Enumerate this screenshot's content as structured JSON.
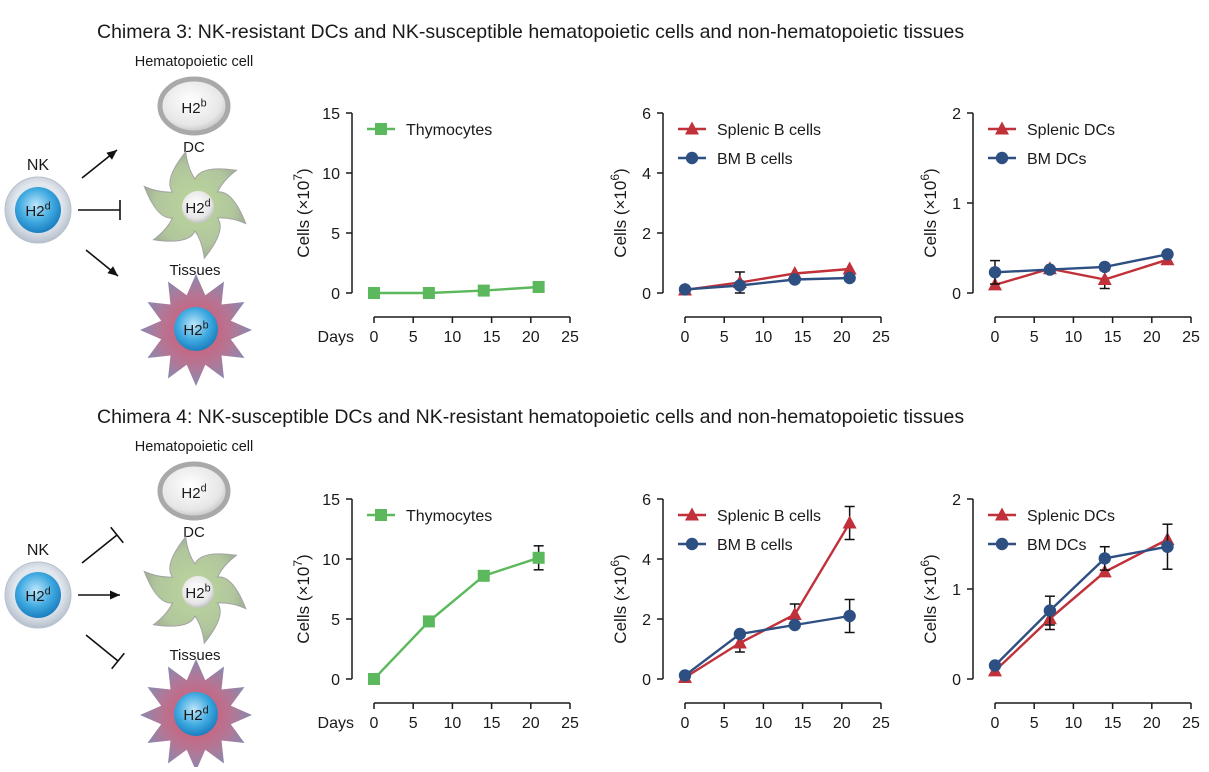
{
  "colors": {
    "green": "#5cb85c",
    "red": "#c0313a",
    "blue": "#2d4f82",
    "cell_gray": "#bcbcbc",
    "cell_blue": "#3fa9e0",
    "axis": "#1a1a1a"
  },
  "icons": [
    "activation-arrow-icon",
    "inhibition-arrow-icon",
    "nk-cell-icon",
    "hematopoietic-cell-icon",
    "dendritic-cell-icon",
    "tissue-cell-icon"
  ],
  "panels": [
    {
      "title": "Chimera 3: NK-resistant DCs and NK-susceptible hematopoietic cells and non-hematopoietic tissues",
      "diagram": {
        "nk_label": "NK",
        "nk_haplotype": "H2",
        "nk_sup": "d",
        "hema_label": "Hematopoietic cell",
        "hema_haplotype": "H2",
        "hema_sup": "b",
        "dc_label": "DC",
        "dc_haplotype": "H2",
        "dc_sup": "d",
        "tissue_label": "Tissues",
        "tissue_haplotype": "H2",
        "tissue_sup": "b",
        "arrows": [
          "activate",
          "inhibit",
          "activate"
        ]
      }
    },
    {
      "title": "Chimera 4: NK-susceptible DCs and NK-resistant hematopoietic cells and non-hematopoietic tissues",
      "diagram": {
        "nk_label": "NK",
        "nk_haplotype": "H2",
        "nk_sup": "d",
        "hema_label": "Hematopoietic cell",
        "hema_haplotype": "H2",
        "hema_sup": "d",
        "dc_label": "DC",
        "dc_haplotype": "H2",
        "dc_sup": "b",
        "tissue_label": "Tissues",
        "tissue_haplotype": "H2",
        "tissue_sup": "d",
        "arrows": [
          "inhibit",
          "activate",
          "inhibit"
        ]
      }
    }
  ],
  "chart_data": [
    {
      "type": "line",
      "panel": "Chimera 3",
      "ylabel": "Cells (×10",
      "ylabel_exp": "7",
      "ylabel_end": ")",
      "xlabel": "Days",
      "xlim": [
        0,
        25
      ],
      "ylim": [
        0,
        15
      ],
      "xticks": [
        0,
        5,
        10,
        15,
        20,
        25
      ],
      "yticks": [
        0,
        5,
        10,
        15
      ],
      "series": [
        {
          "name": "Thymocytes",
          "marker": "square",
          "color": "#5cb85c",
          "x": [
            0,
            7,
            14,
            21
          ],
          "values": [
            0,
            0,
            0.2,
            0.5
          ],
          "err": [
            0,
            0,
            0,
            0
          ]
        }
      ]
    },
    {
      "type": "line",
      "panel": "Chimera 3",
      "ylabel": "Cells (×10",
      "ylabel_exp": "6",
      "ylabel_end": ")",
      "xlabel": "",
      "xlim": [
        0,
        25
      ],
      "ylim": [
        0,
        6
      ],
      "xticks": [
        0,
        5,
        10,
        15,
        20,
        25
      ],
      "yticks": [
        0,
        2,
        4,
        6
      ],
      "series": [
        {
          "name": "Splenic B cells",
          "marker": "triangle",
          "color": "#c0313a",
          "x": [
            0,
            7,
            14,
            21
          ],
          "values": [
            0.1,
            0.35,
            0.65,
            0.8
          ],
          "err": [
            0,
            0.35,
            0,
            0
          ]
        },
        {
          "name": "BM B cells",
          "marker": "circle",
          "color": "#2d4f82",
          "x": [
            0,
            7,
            14,
            21
          ],
          "values": [
            0.12,
            0.25,
            0.45,
            0.5
          ],
          "err": [
            0,
            0,
            0,
            0
          ]
        }
      ]
    },
    {
      "type": "line",
      "panel": "Chimera 3",
      "ylabel": "Cells (×10",
      "ylabel_exp": "6",
      "ylabel_end": ")",
      "xlabel": "",
      "xlim": [
        0,
        25
      ],
      "ylim": [
        0,
        2
      ],
      "xticks": [
        0,
        5,
        10,
        15,
        20,
        25
      ],
      "yticks": [
        0,
        1,
        2
      ],
      "series": [
        {
          "name": "Splenic DCs",
          "marker": "triangle",
          "color": "#c0313a",
          "x": [
            0,
            7,
            14,
            22
          ],
          "values": [
            0.09,
            0.27,
            0.15,
            0.37
          ],
          "err": [
            0,
            0,
            0.1,
            0
          ]
        },
        {
          "name": "BM DCs",
          "marker": "circle",
          "color": "#2d4f82",
          "x": [
            0,
            7,
            14,
            22
          ],
          "values": [
            0.23,
            0.26,
            0.29,
            0.43
          ],
          "err": [
            0.13,
            0,
            0,
            0
          ]
        }
      ]
    },
    {
      "type": "line",
      "panel": "Chimera 4",
      "ylabel": "Cells (×10",
      "ylabel_exp": "7",
      "ylabel_end": ")",
      "xlabel": "Days",
      "xlim": [
        0,
        25
      ],
      "ylim": [
        0,
        15
      ],
      "xticks": [
        0,
        5,
        10,
        15,
        20,
        25
      ],
      "yticks": [
        0,
        5,
        10,
        15
      ],
      "series": [
        {
          "name": "Thymocytes",
          "marker": "square",
          "color": "#5cb85c",
          "x": [
            0,
            7,
            14,
            21
          ],
          "values": [
            0,
            4.8,
            8.6,
            10.1
          ],
          "err": [
            0,
            0,
            0,
            1.0
          ]
        }
      ]
    },
    {
      "type": "line",
      "panel": "Chimera 4",
      "ylabel": "Cells (×10",
      "ylabel_exp": "6",
      "ylabel_end": ")",
      "xlabel": "",
      "xlim": [
        0,
        25
      ],
      "ylim": [
        0,
        6
      ],
      "xticks": [
        0,
        5,
        10,
        15,
        20,
        25
      ],
      "yticks": [
        0,
        2,
        4,
        6
      ],
      "series": [
        {
          "name": "Splenic B cells",
          "marker": "triangle",
          "color": "#c0313a",
          "x": [
            0,
            7,
            14,
            21
          ],
          "values": [
            0.05,
            1.2,
            2.15,
            5.2
          ],
          "err": [
            0,
            0.3,
            0.35,
            0.55
          ]
        },
        {
          "name": "BM B cells",
          "marker": "circle",
          "color": "#2d4f82",
          "x": [
            0,
            7,
            14,
            21
          ],
          "values": [
            0.12,
            1.5,
            1.8,
            2.1
          ],
          "err": [
            0,
            0,
            0,
            0.55
          ]
        }
      ]
    },
    {
      "type": "line",
      "panel": "Chimera 4",
      "ylabel": "Cells (×10",
      "ylabel_exp": "6",
      "ylabel_end": ")",
      "xlabel": "",
      "xlim": [
        0,
        25
      ],
      "ylim": [
        0,
        2
      ],
      "xticks": [
        0,
        5,
        10,
        15,
        20,
        25
      ],
      "yticks": [
        0,
        1,
        2
      ],
      "series": [
        {
          "name": "Splenic DCs",
          "marker": "triangle",
          "color": "#c0313a",
          "x": [
            0,
            7,
            14,
            22
          ],
          "values": [
            0.09,
            0.67,
            1.19,
            1.55
          ],
          "err": [
            0,
            0.12,
            0,
            0
          ]
        },
        {
          "name": "BM DCs",
          "marker": "circle",
          "color": "#2d4f82",
          "x": [
            0,
            7,
            14,
            22
          ],
          "values": [
            0.15,
            0.76,
            1.34,
            1.47
          ],
          "err": [
            0,
            0.16,
            0.13,
            0.25
          ]
        }
      ]
    }
  ]
}
